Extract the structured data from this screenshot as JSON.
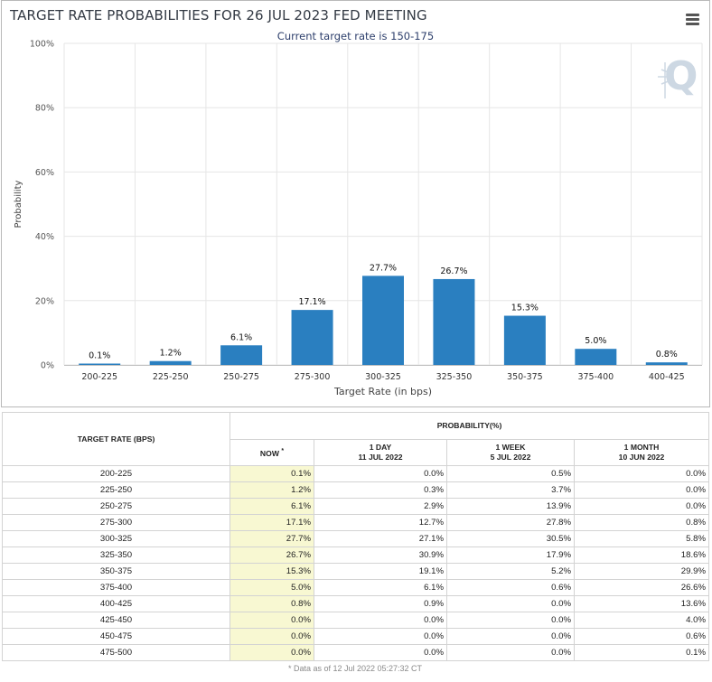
{
  "chart_data": {
    "type": "bar",
    "title": "TARGET RATE PROBABILITIES FOR 26 JUL 2023 FED MEETING",
    "subtitle": "Current target rate is 150-175",
    "categories": [
      "200-225",
      "225-250",
      "250-275",
      "275-300",
      "300-325",
      "325-350",
      "350-375",
      "375-400",
      "400-425"
    ],
    "values": [
      0.1,
      1.2,
      6.1,
      17.1,
      27.7,
      26.7,
      15.3,
      5.0,
      0.8
    ],
    "data_labels": [
      "0.1%",
      "1.2%",
      "6.1%",
      "17.1%",
      "27.7%",
      "26.7%",
      "15.3%",
      "5.0%",
      "0.8%"
    ],
    "xlabel": "Target Rate (in bps)",
    "ylabel": "Probability",
    "ylim": [
      0,
      100
    ],
    "yticks": [
      0,
      20,
      40,
      60,
      80,
      100
    ],
    "ytick_labels": [
      "0%",
      "20%",
      "40%",
      "60%",
      "80%",
      "100%"
    ],
    "grid": true,
    "bar_color": "#2a7fc0"
  },
  "table": {
    "header_rate": "TARGET RATE (BPS)",
    "header_prob": "PROBABILITY(%)",
    "col_now": "NOW",
    "col_now_mark": "*",
    "col_1day": "1 DAY",
    "col_1day_date": "11 JUL 2022",
    "col_1week": "1 WEEK",
    "col_1week_date": "5 JUL 2022",
    "col_1month": "1 MONTH",
    "col_1month_date": "10 JUN 2022",
    "rows": [
      [
        "200-225",
        "0.1%",
        "0.0%",
        "0.5%",
        "0.0%"
      ],
      [
        "225-250",
        "1.2%",
        "0.3%",
        "3.7%",
        "0.0%"
      ],
      [
        "250-275",
        "6.1%",
        "2.9%",
        "13.9%",
        "0.0%"
      ],
      [
        "275-300",
        "17.1%",
        "12.7%",
        "27.8%",
        "0.8%"
      ],
      [
        "300-325",
        "27.7%",
        "27.1%",
        "30.5%",
        "5.8%"
      ],
      [
        "325-350",
        "26.7%",
        "30.9%",
        "17.9%",
        "18.6%"
      ],
      [
        "350-375",
        "15.3%",
        "19.1%",
        "5.2%",
        "29.9%"
      ],
      [
        "375-400",
        "5.0%",
        "6.1%",
        "0.6%",
        "26.6%"
      ],
      [
        "400-425",
        "0.8%",
        "0.9%",
        "0.0%",
        "13.6%"
      ],
      [
        "425-450",
        "0.0%",
        "0.0%",
        "0.0%",
        "4.0%"
      ],
      [
        "450-475",
        "0.0%",
        "0.0%",
        "0.0%",
        "0.6%"
      ],
      [
        "475-500",
        "0.0%",
        "0.0%",
        "0.0%",
        "0.1%"
      ]
    ],
    "footnote": "* Data as of 12 Jul 2022 05:27:32 CT"
  }
}
